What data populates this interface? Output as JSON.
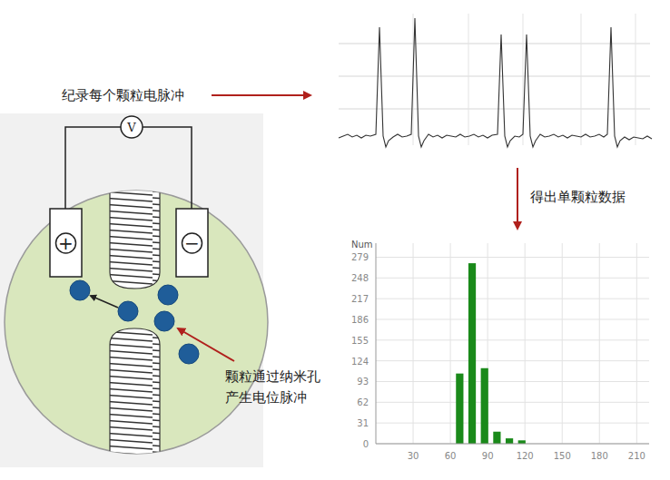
{
  "diagram": {
    "pulse_label": "纪录每个颗粒电脉冲",
    "result_label": "得出单颗粒数据",
    "particle_label": [
      "颗粒通过纳米孔",
      "产生电位脉冲"
    ],
    "voltmeter": "V",
    "electrodes": [
      "+",
      "−"
    ]
  },
  "chart_data": {
    "type": "histogram",
    "y_label": "Num",
    "bins": [
      62.5,
      72.5,
      82.5,
      92.5,
      102.5,
      112.5,
      122.5
    ],
    "values": [
      105,
      270,
      113,
      18,
      8,
      5
    ],
    "color": "#1a8a1a",
    "xlim": [
      0,
      220
    ],
    "ylim": [
      0,
      300
    ],
    "xticks": [
      30,
      60,
      90,
      120,
      150,
      180,
      210
    ],
    "yticks": [
      0,
      31,
      62,
      93,
      124,
      155,
      186,
      217,
      248,
      279
    ],
    "grid": true
  }
}
